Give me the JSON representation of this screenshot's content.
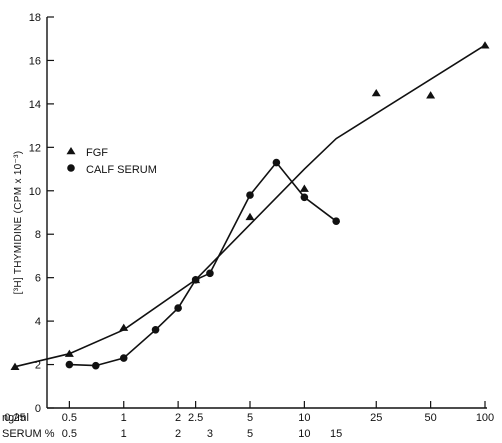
{
  "chart_data": {
    "type": "line",
    "title": "",
    "ylabel": "[³H] THYMIDINE (CPM x 10⁻³)",
    "y_ticks": [
      0,
      2,
      4,
      6,
      8,
      10,
      12,
      14,
      16,
      18
    ],
    "ylim": [
      0,
      18
    ],
    "x_scale": "log",
    "xlim": [
      0.25,
      100
    ],
    "x_axis_rows": [
      {
        "row_label": "ng/ml",
        "ticks": [
          {
            "x": 0.25,
            "label": "0.25"
          },
          {
            "x": 0.5,
            "label": "0.5"
          },
          {
            "x": 1,
            "label": "1"
          },
          {
            "x": 2,
            "label": "2"
          },
          {
            "x": 2.5,
            "label": "2.5"
          },
          {
            "x": 5,
            "label": "5"
          },
          {
            "x": 10,
            "label": "10"
          },
          {
            "x": 25,
            "label": "25"
          },
          {
            "x": 50,
            "label": "50"
          },
          {
            "x": 100,
            "label": "100"
          }
        ]
      },
      {
        "row_label": "SERUM %",
        "ticks": [
          {
            "x": 0.5,
            "label": "0.5"
          },
          {
            "x": 1,
            "label": "1"
          },
          {
            "x": 2,
            "label": "2"
          },
          {
            "x": 3,
            "label": "3"
          },
          {
            "x": 5,
            "label": "5"
          },
          {
            "x": 10,
            "label": "10"
          },
          {
            "x": 15,
            "label": "15"
          }
        ]
      }
    ],
    "legend": {
      "placement": "left-middle"
    },
    "series": [
      {
        "name": "FGF",
        "marker": "triangle",
        "points": [
          {
            "x": 0.25,
            "y": 1.9
          },
          {
            "x": 0.5,
            "y": 2.5
          },
          {
            "x": 1,
            "y": 3.7
          },
          {
            "x": 2.5,
            "y": 5.9
          },
          {
            "x": 5,
            "y": 8.8
          },
          {
            "x": 10,
            "y": 10.1
          },
          {
            "x": 25,
            "y": 14.5
          },
          {
            "x": 50,
            "y": 14.4
          },
          {
            "x": 100,
            "y": 16.7
          }
        ],
        "fit_line": [
          {
            "x": 0.25,
            "y": 1.9
          },
          {
            "x": 0.5,
            "y": 2.5
          },
          {
            "x": 1,
            "y": 3.6
          },
          {
            "x": 2.5,
            "y": 5.9
          },
          {
            "x": 10,
            "y": 11.0
          },
          {
            "x": 15,
            "y": 12.4
          },
          {
            "x": 100,
            "y": 16.7
          }
        ]
      },
      {
        "name": "CALF SERUM",
        "marker": "circle",
        "points": [
          {
            "x": 0.5,
            "y": 2.0
          },
          {
            "x": 0.7,
            "y": 1.95
          },
          {
            "x": 1,
            "y": 2.3
          },
          {
            "x": 1.5,
            "y": 3.6
          },
          {
            "x": 2,
            "y": 4.6
          },
          {
            "x": 2.5,
            "y": 5.9
          },
          {
            "x": 3,
            "y": 6.2
          },
          {
            "x": 5,
            "y": 9.8
          },
          {
            "x": 7,
            "y": 11.3
          },
          {
            "x": 10,
            "y": 9.7
          },
          {
            "x": 15,
            "y": 8.6
          }
        ]
      }
    ]
  }
}
